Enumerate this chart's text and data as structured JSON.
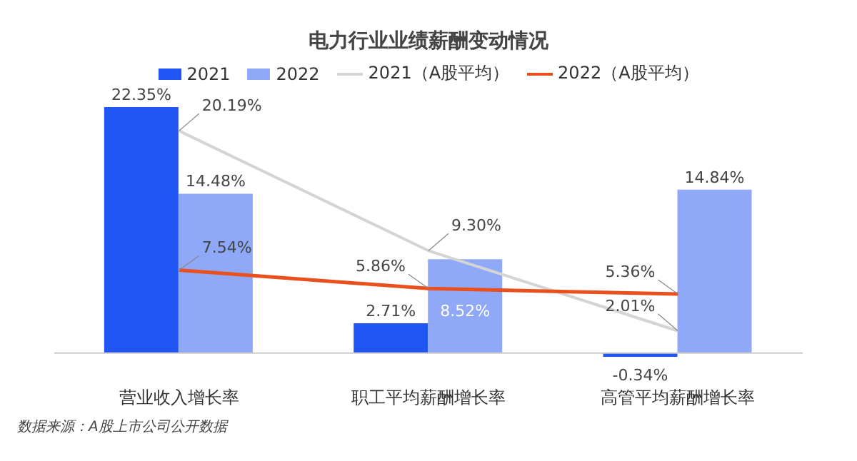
{
  "chart_data": {
    "type": "bar",
    "title": "电力行业业绩薪酬变动情况",
    "categories": [
      "营业收入增长率",
      "职工平均薪酬增长率",
      "高管平均薪酬增长率"
    ],
    "series": [
      {
        "name": "2021",
        "color": "#1f55f2",
        "values": [
          22.35,
          2.71,
          -0.34
        ],
        "value_labels": [
          "22.35%",
          "2.71%",
          "-0.34%"
        ]
      },
      {
        "name": "2022",
        "color": "#8fa9f8",
        "values": [
          14.48,
          8.52,
          14.84
        ],
        "value_labels": [
          "14.48%",
          "8.52%",
          "14.84%"
        ]
      },
      {
        "name": "2021（A股平均）",
        "type": "line",
        "color": "#d4d4d4",
        "values": [
          20.19,
          9.3,
          2.01
        ],
        "value_labels": [
          "20.19%",
          "9.30%",
          "2.01%"
        ]
      },
      {
        "name": "2022（A股平均）",
        "type": "line",
        "color": "#e8501e",
        "values": [
          7.54,
          5.86,
          5.36
        ],
        "value_labels": [
          "7.54%",
          "5.86%",
          "5.36%"
        ]
      }
    ],
    "legend": "top",
    "marker": "none",
    "tick_labels": "x",
    "annotations": [
      "数据来源：A股上市公司公开数据"
    ]
  }
}
